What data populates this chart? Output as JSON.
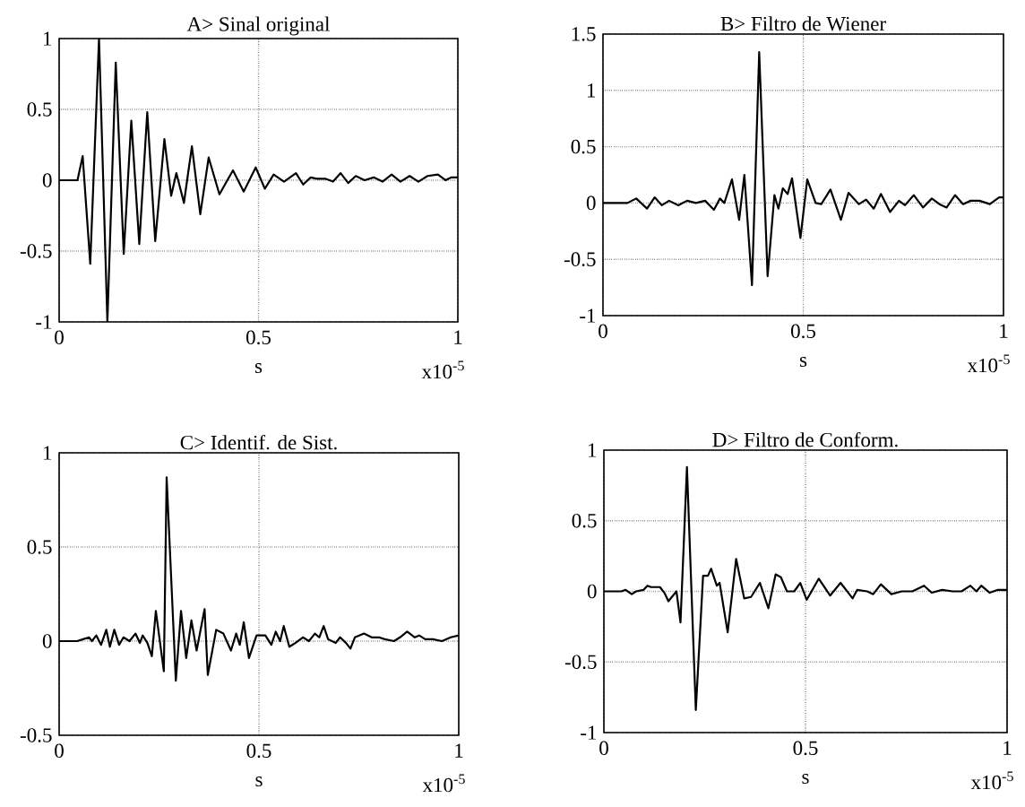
{
  "chart_data": [
    {
      "type": "line",
      "title": "A>  Sinal original",
      "xlabel": "s",
      "annotations": [
        "x10$^{-5}$"
      ],
      "color": "#000000",
      "marker": "none",
      "line_style": "solid",
      "grid": true,
      "xlim": [
        0,
        1
      ],
      "xticks": [
        0,
        0.5,
        1
      ],
      "ylim": [
        -1,
        1
      ],
      "yticks": [
        -1,
        -0.5,
        0,
        0.5,
        1
      ],
      "x": [
        0,
        0.046,
        0.059,
        0.078,
        0.1,
        0.121,
        0.142,
        0.162,
        0.181,
        0.201,
        0.221,
        0.241,
        0.264,
        0.281,
        0.294,
        0.313,
        0.333,
        0.354,
        0.375,
        0.402,
        0.436,
        0.463,
        0.493,
        0.516,
        0.538,
        0.564,
        0.594,
        0.612,
        0.631,
        0.646,
        0.669,
        0.687,
        0.706,
        0.725,
        0.744,
        0.766,
        0.789,
        0.811,
        0.834,
        0.856,
        0.879,
        0.901,
        0.924,
        0.95,
        0.969,
        0.984,
        1.0
      ],
      "values": [
        0,
        0,
        0.17,
        -0.59,
        1.0,
        -1.0,
        0.83,
        -0.52,
        0.42,
        -0.45,
        0.48,
        -0.43,
        0.29,
        -0.11,
        0.05,
        -0.16,
        0.24,
        -0.24,
        0.16,
        -0.1,
        0.07,
        -0.08,
        0.09,
        -0.06,
        0.04,
        -0.01,
        0.05,
        -0.03,
        0.02,
        0.01,
        0.01,
        -0.01,
        0.05,
        -0.02,
        0.03,
        0,
        0.02,
        -0.01,
        0.04,
        -0.01,
        0.03,
        -0.01,
        0.03,
        0.04,
        0,
        0.02,
        0.02
      ]
    },
    {
      "type": "line",
      "title": "B>  Filtro de Wiener",
      "xlabel": "s",
      "annotations": [
        "x10$^{-5}$"
      ],
      "color": "#000000",
      "marker": "none",
      "line_style": "solid",
      "grid": true,
      "xlim": [
        0,
        1
      ],
      "xticks": [
        0,
        0.5,
        1
      ],
      "ylim": [
        -1,
        1.5
      ],
      "yticks": [
        -1,
        -0.5,
        0,
        0.5,
        1,
        1.5
      ],
      "x": [
        0,
        0.061,
        0.083,
        0.11,
        0.129,
        0.147,
        0.165,
        0.188,
        0.21,
        0.232,
        0.255,
        0.277,
        0.292,
        0.303,
        0.322,
        0.34,
        0.353,
        0.372,
        0.39,
        0.411,
        0.428,
        0.438,
        0.449,
        0.461,
        0.472,
        0.493,
        0.51,
        0.531,
        0.545,
        0.568,
        0.594,
        0.613,
        0.639,
        0.657,
        0.676,
        0.694,
        0.717,
        0.739,
        0.754,
        0.776,
        0.799,
        0.821,
        0.84,
        0.858,
        0.879,
        0.899,
        0.918,
        0.94,
        0.966,
        0.989,
        1.0
      ],
      "values": [
        0,
        0,
        0.04,
        -0.05,
        0.05,
        -0.02,
        0.02,
        -0.02,
        0.02,
        0,
        0.02,
        -0.06,
        0.04,
        0,
        0.21,
        -0.15,
        0.25,
        -0.73,
        1.34,
        -0.65,
        0.07,
        -0.05,
        0.13,
        0.08,
        0.22,
        -0.31,
        0.21,
        0,
        -0.01,
        0.12,
        -0.15,
        0.09,
        -0.01,
        0.03,
        -0.05,
        0.08,
        -0.08,
        0.02,
        -0.02,
        0.07,
        -0.04,
        0.04,
        -0.01,
        -0.04,
        0.07,
        -0.01,
        0.02,
        0.02,
        -0.01,
        0.05,
        0.05
      ]
    },
    {
      "type": "line",
      "title": "C>  Identif. de Sist.",
      "xlabel": "s",
      "annotations": [
        "x10$^{-5}$"
      ],
      "color": "#000000",
      "marker": "none",
      "line_style": "solid",
      "grid": true,
      "xlim": [
        0,
        1
      ],
      "xticks": [
        0,
        0.5,
        1
      ],
      "ylim": [
        -0.5,
        1
      ],
      "yticks": [
        -0.5,
        0,
        0.5,
        1
      ],
      "x": [
        0,
        0.045,
        0.06,
        0.075,
        0.082,
        0.093,
        0.105,
        0.118,
        0.127,
        0.138,
        0.15,
        0.161,
        0.176,
        0.191,
        0.202,
        0.209,
        0.221,
        0.232,
        0.242,
        0.262,
        0.269,
        0.292,
        0.305,
        0.318,
        0.331,
        0.344,
        0.364,
        0.372,
        0.393,
        0.411,
        0.43,
        0.443,
        0.452,
        0.462,
        0.475,
        0.494,
        0.516,
        0.531,
        0.542,
        0.553,
        0.562,
        0.576,
        0.591,
        0.61,
        0.625,
        0.64,
        0.651,
        0.662,
        0.673,
        0.692,
        0.703,
        0.718,
        0.729,
        0.74,
        0.763,
        0.782,
        0.8,
        0.815,
        0.838,
        0.853,
        0.871,
        0.89,
        0.901,
        0.916,
        0.935,
        0.958,
        0.98,
        1.0
      ],
      "values": [
        0,
        0,
        0.01,
        0.02,
        0,
        0.03,
        -0.02,
        0.06,
        -0.03,
        0.06,
        -0.02,
        0.02,
        0,
        0.04,
        -0.01,
        0.03,
        -0.01,
        -0.08,
        0.16,
        -0.16,
        0.87,
        -0.21,
        0.16,
        -0.09,
        0.11,
        -0.05,
        0.17,
        -0.18,
        0.06,
        0.04,
        -0.05,
        0.04,
        -0.02,
        0.1,
        -0.09,
        0.03,
        0.03,
        -0.02,
        0.05,
        0,
        0.08,
        -0.03,
        -0.01,
        0.02,
        0,
        0.04,
        0.02,
        0.08,
        0.01,
        -0.01,
        0.02,
        -0.01,
        -0.04,
        0.02,
        0.04,
        0.02,
        0.02,
        0.01,
        0,
        0.02,
        0.05,
        0.02,
        0.03,
        0.01,
        0.01,
        0,
        0.02,
        0.03
      ]
    },
    {
      "type": "line",
      "title": "D>  Filtro de Conform.",
      "xlabel": "s",
      "annotations": [
        "x10$^{-5}$"
      ],
      "color": "#000000",
      "marker": "none",
      "line_style": "solid",
      "grid": true,
      "xlim": [
        0,
        1
      ],
      "xticks": [
        0,
        0.5,
        1
      ],
      "ylim": [
        -1,
        1
      ],
      "yticks": [
        -1,
        -0.5,
        0,
        0.5,
        1
      ],
      "x": [
        0,
        0.043,
        0.054,
        0.069,
        0.08,
        0.098,
        0.108,
        0.117,
        0.139,
        0.15,
        0.16,
        0.18,
        0.19,
        0.206,
        0.228,
        0.246,
        0.258,
        0.266,
        0.28,
        0.287,
        0.307,
        0.328,
        0.348,
        0.365,
        0.387,
        0.408,
        0.426,
        0.439,
        0.454,
        0.472,
        0.487,
        0.503,
        0.533,
        0.561,
        0.587,
        0.617,
        0.628,
        0.653,
        0.668,
        0.687,
        0.713,
        0.739,
        0.765,
        0.794,
        0.813,
        0.839,
        0.865,
        0.887,
        0.909,
        0.924,
        0.936,
        0.957,
        0.976,
        1.0
      ],
      "values": [
        0,
        0,
        0.01,
        -0.02,
        0,
        0.01,
        0.04,
        0.03,
        0.03,
        -0.01,
        -0.07,
        0,
        -0.22,
        0.88,
        -0.84,
        0.11,
        0.11,
        0.16,
        0.04,
        0.06,
        -0.29,
        0.23,
        -0.05,
        -0.04,
        0.06,
        -0.12,
        0.12,
        0.1,
        0,
        0,
        0.06,
        -0.06,
        0.09,
        -0.03,
        0.06,
        -0.05,
        0.01,
        0,
        -0.02,
        0.05,
        -0.02,
        0,
        0,
        0.04,
        -0.01,
        0.01,
        0,
        0,
        0.04,
        0,
        0.04,
        -0.01,
        0.01,
        0.01
      ]
    }
  ]
}
